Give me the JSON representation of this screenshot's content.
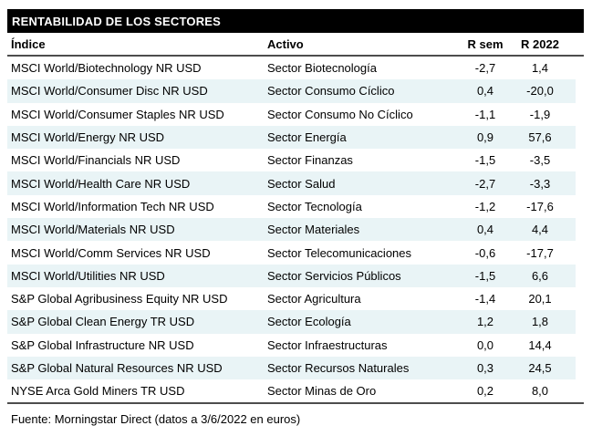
{
  "chart_data": {
    "type": "table",
    "title": "RENTABILIDAD DE LOS SECTORES",
    "columns": [
      "Índice",
      "Activo",
      "R sem",
      "R 2022"
    ],
    "rows": [
      [
        "MSCI World/Biotechnology NR USD",
        "Sector Biotecnología",
        "-2,7",
        "1,4"
      ],
      [
        "MSCI World/Consumer Disc NR USD",
        "Sector Consumo Cíclico",
        "0,4",
        "-20,0"
      ],
      [
        "MSCI World/Consumer Staples NR USD",
        "Sector Consumo No Cíclico",
        "-1,1",
        "-1,9"
      ],
      [
        "MSCI World/Energy NR USD",
        "Sector Energía",
        "0,9",
        "57,6"
      ],
      [
        "MSCI World/Financials NR USD",
        "Sector Finanzas",
        "-1,5",
        "-3,5"
      ],
      [
        "MSCI World/Health Care NR USD",
        "Sector Salud",
        "-2,7",
        "-3,3"
      ],
      [
        "MSCI World/Information Tech NR USD",
        "Sector Tecnología",
        "-1,2",
        "-17,6"
      ],
      [
        "MSCI World/Materials NR USD",
        "Sector Materiales",
        "0,4",
        "4,4"
      ],
      [
        "MSCI World/Comm Services NR USD",
        "Sector Telecomunicaciones",
        "-0,6",
        "-17,7"
      ],
      [
        "MSCI World/Utilities NR USD",
        "Sector Servicios Públicos",
        "-1,5",
        "6,6"
      ],
      [
        "S&P Global Agribusiness Equity NR USD",
        "Sector Agricultura",
        "-1,4",
        "20,1"
      ],
      [
        "S&P Global Clean Energy TR USD",
        "Sector Ecología",
        "1,2",
        "1,8"
      ],
      [
        "S&P Global Infrastructure NR USD",
        "Sector Infraestructuras",
        "0,0",
        "14,4"
      ],
      [
        "S&P Global Natural Resources NR USD",
        "Sector Recursos Naturales",
        "0,3",
        "24,5"
      ],
      [
        "NYSE Arca Gold Miners TR USD",
        "Sector Minas de Oro",
        "0,2",
        "8,0"
      ]
    ],
    "source_note": "Fuente: Morningstar Direct (datos a 3/6/2022 en euros)",
    "layout_hints": {
      "stripe_pattern": "even rows shaded",
      "numeric_alignment": "center"
    }
  },
  "colors": {
    "title_bg": "#000000",
    "title_fg": "#ffffff",
    "row_stripe": "#e9f4f6",
    "rule": "#4d4d4d",
    "text": "#000000",
    "background": "#ffffff"
  }
}
